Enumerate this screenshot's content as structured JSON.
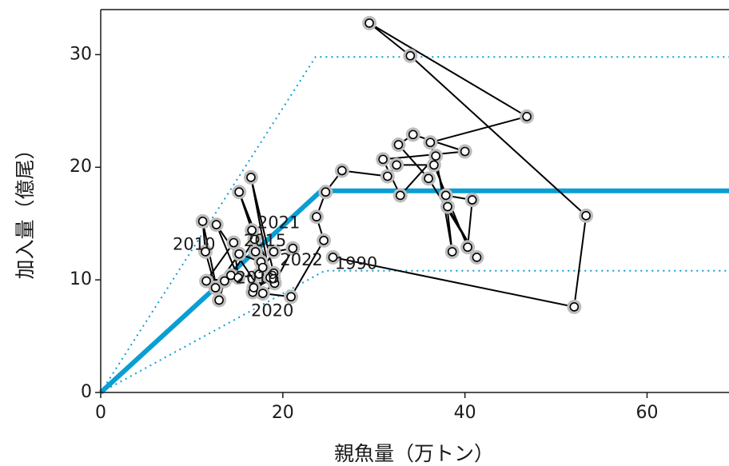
{
  "chart_data": {
    "type": "scatter",
    "title": "",
    "xlabel": "親魚量（万トン）",
    "ylabel": "加入量（億尾）",
    "xlim": [
      0,
      69
    ],
    "ylim": [
      0,
      34
    ],
    "x_ticks": [
      "0",
      "20",
      "40",
      "60"
    ],
    "y_ticks": [
      "0",
      "10",
      "20",
      "30"
    ],
    "grid": false,
    "colors": {
      "curve": "#0a9ed3",
      "trajectory": "#000000",
      "halo": "#bdbdbd",
      "point_fill": "#ffffff"
    },
    "series": [
      {
        "type": "line",
        "style": "solid",
        "points": [
          [
            0,
            0
          ],
          [
            24.2,
            17.9
          ],
          [
            69,
            17.9
          ]
        ]
      },
      {
        "type": "line",
        "style": "dotted",
        "points": [
          [
            0,
            0
          ],
          [
            23.6,
            29.8
          ],
          [
            69,
            29.8
          ]
        ]
      },
      {
        "type": "line",
        "style": "dotted",
        "points": [
          [
            0,
            0
          ],
          [
            24.6,
            10.8
          ],
          [
            69,
            10.8
          ]
        ]
      },
      {
        "type": "scatter",
        "connected": true,
        "points": [
          [
            25.5,
            12.0
          ],
          [
            52.0,
            7.6
          ],
          [
            53.3,
            15.7
          ],
          [
            34.0,
            29.9
          ],
          [
            29.5,
            32.8
          ],
          [
            46.8,
            24.5
          ],
          [
            36.2,
            22.2
          ],
          [
            38.1,
            16.5
          ],
          [
            41.3,
            12.0
          ],
          [
            36.0,
            19.0
          ],
          [
            32.7,
            22.0
          ],
          [
            34.3,
            22.9
          ],
          [
            40.0,
            21.4
          ],
          [
            31.0,
            20.7
          ],
          [
            32.9,
            17.5
          ],
          [
            36.8,
            21.0
          ],
          [
            38.6,
            12.5
          ],
          [
            37.9,
            17.5
          ],
          [
            40.8,
            17.1
          ],
          [
            40.3,
            12.9
          ],
          [
            36.6,
            20.2
          ],
          [
            32.5,
            20.2
          ],
          [
            31.5,
            19.2
          ],
          [
            26.5,
            19.7
          ],
          [
            24.7,
            17.8
          ],
          [
            23.7,
            15.6
          ],
          [
            24.5,
            13.5
          ],
          [
            20.9,
            8.5
          ],
          [
            16.7,
            8.9
          ],
          [
            18.8,
            10.4
          ],
          [
            15.2,
            17.8
          ],
          [
            16.6,
            14.4
          ],
          [
            17.6,
            11.6
          ],
          [
            15.2,
            12.3
          ],
          [
            12.6,
            9.3
          ],
          [
            11.5,
            12.5
          ],
          [
            11.2,
            15.2
          ],
          [
            13.0,
            8.2
          ],
          [
            13.6,
            9.9
          ],
          [
            14.3,
            10.4
          ],
          [
            16.9,
            13.6
          ],
          [
            17.0,
            12.5
          ],
          [
            17.4,
            10.5
          ],
          [
            19.0,
            12.5
          ],
          [
            21.1,
            12.8
          ],
          [
            19.1,
            9.7
          ],
          [
            17.8,
            8.8
          ],
          [
            12.7,
            14.9
          ],
          [
            15.1,
            10.2
          ],
          [
            14.6,
            13.3
          ],
          [
            11.6,
            9.9
          ],
          [
            19.0,
            10.6
          ],
          [
            16.5,
            19.1
          ],
          [
            18.6,
            10.2
          ],
          [
            16.8,
            9.3
          ],
          [
            19.0,
            10.1
          ],
          [
            17.8,
            11.1
          ]
        ]
      }
    ],
    "annotations": [
      {
        "text": "1990",
        "x": 25.7,
        "y": 11.4
      },
      {
        "text": "2010",
        "x": 7.9,
        "y": 13.1
      },
      {
        "text": "2015",
        "x": 15.7,
        "y": 13.4
      },
      {
        "text": "2019",
        "x": 14.8,
        "y": 10.1
      },
      {
        "text": "2020",
        "x": 16.5,
        "y": 7.2
      },
      {
        "text": "2021",
        "x": 17.2,
        "y": 15.0
      },
      {
        "text": "2022",
        "x": 19.7,
        "y": 11.7
      }
    ]
  }
}
